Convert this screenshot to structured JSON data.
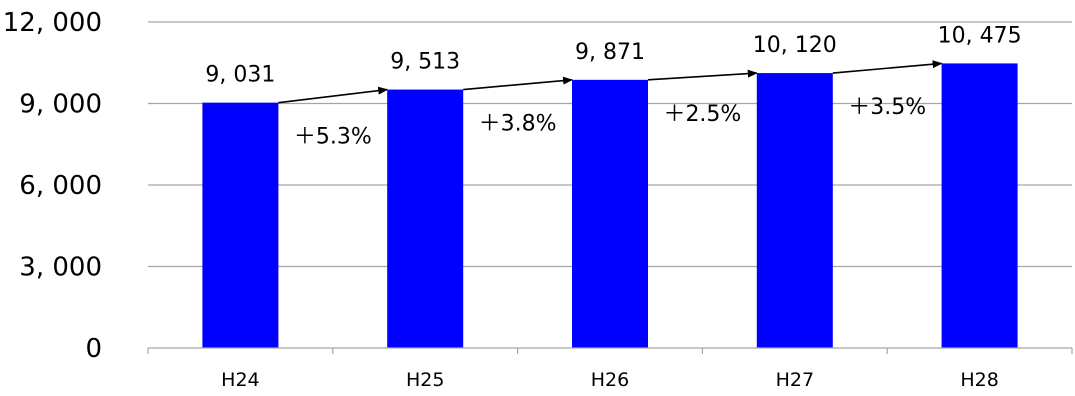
{
  "chart_data": {
    "type": "bar",
    "categories": [
      "H24",
      "H25",
      "H26",
      "H27",
      "H28"
    ],
    "values": [
      9031,
      9513,
      9871,
      10120,
      10475
    ],
    "value_labels": [
      "9, 031",
      "9, 513",
      "9, 871",
      "10, 120",
      "10, 475"
    ],
    "growth_labels": [
      "＋5.3%",
      "＋3.8%",
      "＋2.5%",
      "＋3.5%"
    ],
    "y_ticks": [
      0,
      3000,
      6000,
      9000,
      12000
    ],
    "y_tick_labels": [
      "0",
      "3, 000",
      "6, 000",
      "9, 000",
      "12, 000"
    ],
    "ylim": [
      0,
      12000
    ],
    "grid": true,
    "legend": "none",
    "bar_color": "#0000ff",
    "grid_color": "#a6a6a6",
    "title": "",
    "xlabel": "",
    "ylabel": ""
  }
}
